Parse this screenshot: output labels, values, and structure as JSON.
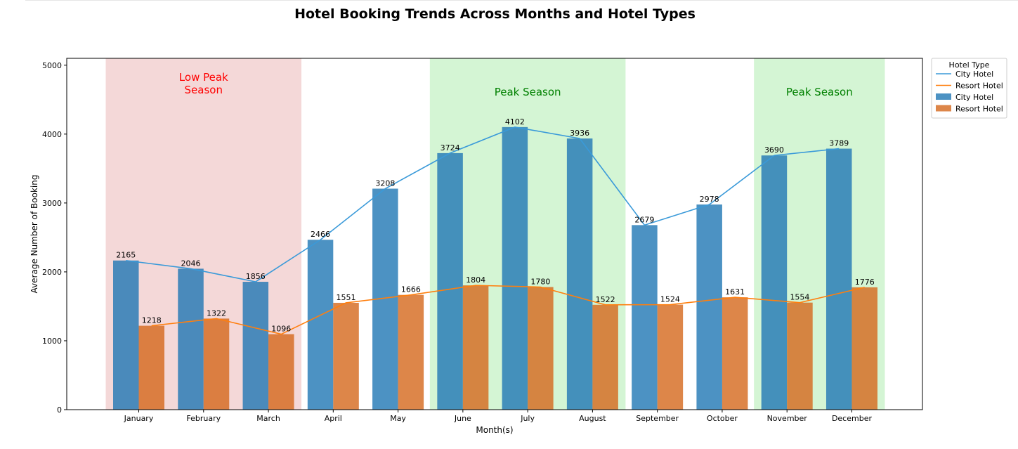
{
  "chart_data": {
    "type": "bar",
    "title": "Hotel Booking Trends Across Months and Hotel Types",
    "xlabel": "Month(s)",
    "ylabel": "Average Number of Booking",
    "ylim": [
      0,
      5100
    ],
    "yticks": [
      0,
      1000,
      2000,
      3000,
      4000,
      5000
    ],
    "grid": false,
    "legend_title": "Hotel Type",
    "legend_position": "outside-top-right",
    "categories": [
      "January",
      "February",
      "March",
      "April",
      "May",
      "June",
      "July",
      "August",
      "September",
      "October",
      "November",
      "December"
    ],
    "series": [
      {
        "name": "City Hotel",
        "color": "#1f77b4",
        "values": [
          2165,
          2046,
          1856,
          2466,
          3208,
          3724,
          4102,
          3936,
          2679,
          2978,
          3690,
          3789
        ]
      },
      {
        "name": "Resort Hotel",
        "color": "#d4681b",
        "values": [
          1218,
          1322,
          1096,
          1551,
          1666,
          1804,
          1780,
          1522,
          1524,
          1631,
          1554,
          1776
        ]
      }
    ],
    "line_series": [
      {
        "name": "City Hotel",
        "color": "#3a9ad9"
      },
      {
        "name": "Resort Hotel",
        "color": "#ff7f0e"
      }
    ],
    "shaded_regions": [
      {
        "label": "Low Peak\nSeason",
        "from": "January",
        "to": "March",
        "color": "#f4d8d8",
        "label_color": "#ff0000"
      },
      {
        "label": "Peak Season",
        "from": "June",
        "to": "August",
        "color": "#d4f5d4",
        "label_color": "#008000"
      },
      {
        "label": "Peak Season",
        "from": "November",
        "to": "December",
        "color": "#d4f5d4",
        "label_color": "#008000"
      }
    ]
  }
}
